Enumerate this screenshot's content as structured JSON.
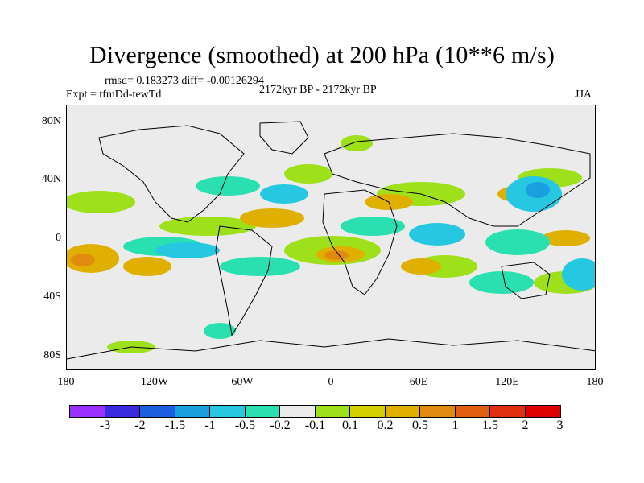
{
  "title": "Divergence (smoothed) at 200 hPa (10**6 m/s)",
  "stats": "rmsd= 0.183273  diff= -0.00126294",
  "experiment": "Expt = tfmDd-tewTd",
  "period": "2172kyr BP - 2172kyr BP",
  "season": "JJA",
  "y_axis": {
    "labels": [
      "80N",
      "40N",
      "0",
      "40S",
      "80S"
    ]
  },
  "x_axis": {
    "labels": [
      "180",
      "120W",
      "60W",
      "0",
      "60E",
      "120E",
      "180"
    ]
  },
  "colorbar": {
    "colors": [
      "#9b30ff",
      "#3a2be0",
      "#1b5ee0",
      "#1aa0e0",
      "#25c8e0",
      "#2be0b0",
      "#ebebeb",
      "#9ee01a",
      "#d4d000",
      "#e0b000",
      "#e08a10",
      "#e06010",
      "#e03010",
      "#e00000"
    ],
    "labels": [
      "-3",
      "-2",
      "-1.5",
      "-1",
      "-0.5",
      "-0.2",
      "-0.1",
      "0.1",
      "0.2",
      "0.5",
      "1",
      "1.5",
      "2",
      "3"
    ]
  },
  "palette": {
    "land_outline": "#000000",
    "background": "#ebebeb",
    "pos_weak": "#9ee01a",
    "pos_mid": "#e0b000",
    "pos_strong": "#e08a10",
    "neg_weak": "#2be0b0",
    "neg_mid": "#25c8e0",
    "neg_strong": "#1aa0e0"
  }
}
